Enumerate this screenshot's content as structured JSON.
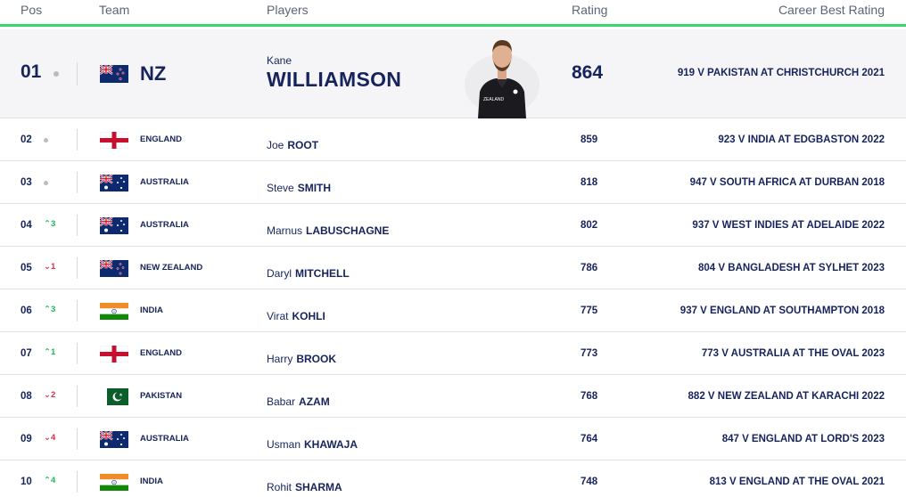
{
  "header": {
    "pos": "Pos",
    "team": "Team",
    "players": "Players",
    "rating": "Rating",
    "best": "Career Best Rating"
  },
  "top": {
    "pos": "01",
    "team": "NZ",
    "flag": "new-zealand-flag-icon",
    "first_name": "Kane",
    "last_name": "WILLIAMSON",
    "rating": "864",
    "best": "919 V PAKISTAN AT CHRISTCHURCH 2021"
  },
  "rows": [
    {
      "pos": "02",
      "move": "",
      "dir": "none",
      "flag": "england-flag-icon",
      "team": "ENGLAND",
      "first": "Joe",
      "last": "ROOT",
      "rating": "859",
      "best": "923 V INDIA AT EDGBASTON 2022"
    },
    {
      "pos": "03",
      "move": "",
      "dir": "none",
      "flag": "australia-flag-icon",
      "team": "AUSTRALIA",
      "first": "Steve",
      "last": "SMITH",
      "rating": "818",
      "best": "947 V SOUTH AFRICA AT DURBAN 2018"
    },
    {
      "pos": "04",
      "move": "^3",
      "dir": "up",
      "flag": "australia-flag-icon",
      "team": "AUSTRALIA",
      "first": "Marnus",
      "last": "LABUSCHAGNE",
      "rating": "802",
      "best": "937 V WEST INDIES AT ADELAIDE 2022"
    },
    {
      "pos": "05",
      "move": "v1",
      "dir": "down",
      "flag": "new-zealand-flag-icon",
      "team": "NEW ZEALAND",
      "first": "Daryl",
      "last": "MITCHELL",
      "rating": "786",
      "best": "804 V BANGLADESH AT SYLHET 2023"
    },
    {
      "pos": "06",
      "move": "^3",
      "dir": "up",
      "flag": "india-flag-icon",
      "team": "INDIA",
      "first": "Virat",
      "last": "KOHLI",
      "rating": "775",
      "best": "937 V ENGLAND AT SOUTHAMPTON 2018"
    },
    {
      "pos": "07",
      "move": "^1",
      "dir": "up",
      "flag": "england-flag-icon",
      "team": "ENGLAND",
      "first": "Harry",
      "last": "BROOK",
      "rating": "773",
      "best": "773 V AUSTRALIA AT THE OVAL 2023"
    },
    {
      "pos": "08",
      "move": "v2",
      "dir": "down",
      "flag": "pakistan-flag-icon",
      "team": "PAKISTAN",
      "first": "Babar",
      "last": "AZAM",
      "rating": "768",
      "best": "882 V NEW ZEALAND AT KARACHI 2022"
    },
    {
      "pos": "09",
      "move": "v4",
      "dir": "down",
      "flag": "australia-flag-icon",
      "team": "AUSTRALIA",
      "first": "Usman",
      "last": "KHAWAJA",
      "rating": "764",
      "best": "847 V ENGLAND AT LORD'S 2023"
    },
    {
      "pos": "10",
      "move": "^4",
      "dir": "up",
      "flag": "india-flag-icon",
      "team": "INDIA",
      "first": "Rohit",
      "last": "SHARMA",
      "rating": "748",
      "best": "813 V ENGLAND AT THE OVAL 2021"
    }
  ],
  "colors": {
    "navy": "#17235c",
    "accent_green": "#36d96e",
    "up": "#1fb85a",
    "down": "#d6324a"
  }
}
